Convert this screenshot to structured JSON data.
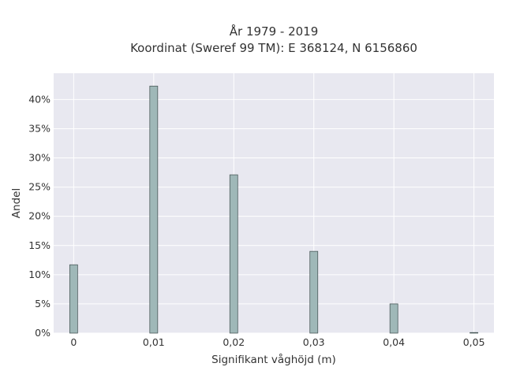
{
  "chart_data": {
    "type": "bar",
    "title_line1": "År 1979 - 2019",
    "title_line2": "Koordinat (Sweref 99 TM): E 368124, N 6156860",
    "xlabel": "Signifikant våghöjd (m)",
    "ylabel": "Andel",
    "x_ticks": [
      "0",
      "0,01",
      "0,02",
      "0,03",
      "0,04",
      "0,05"
    ],
    "y_ticks": [
      "0%",
      "5%",
      "10%",
      "15%",
      "20%",
      "25%",
      "30%",
      "35%",
      "40%"
    ],
    "xlim": [
      -0.0025,
      0.0525
    ],
    "ylim": [
      0,
      44.5
    ],
    "bars": [
      {
        "x": 0.0,
        "value": 11.7
      },
      {
        "x": 0.01,
        "value": 42.3
      },
      {
        "x": 0.02,
        "value": 27.1
      },
      {
        "x": 0.03,
        "value": 14.0
      },
      {
        "x": 0.04,
        "value": 5.0
      },
      {
        "x": 0.05,
        "value": 0.1
      }
    ],
    "bar_color": "#9fb8b8",
    "bar_edge_color": "#4a5a5a",
    "plot_bg": "#e8e8f0",
    "grid": true
  }
}
